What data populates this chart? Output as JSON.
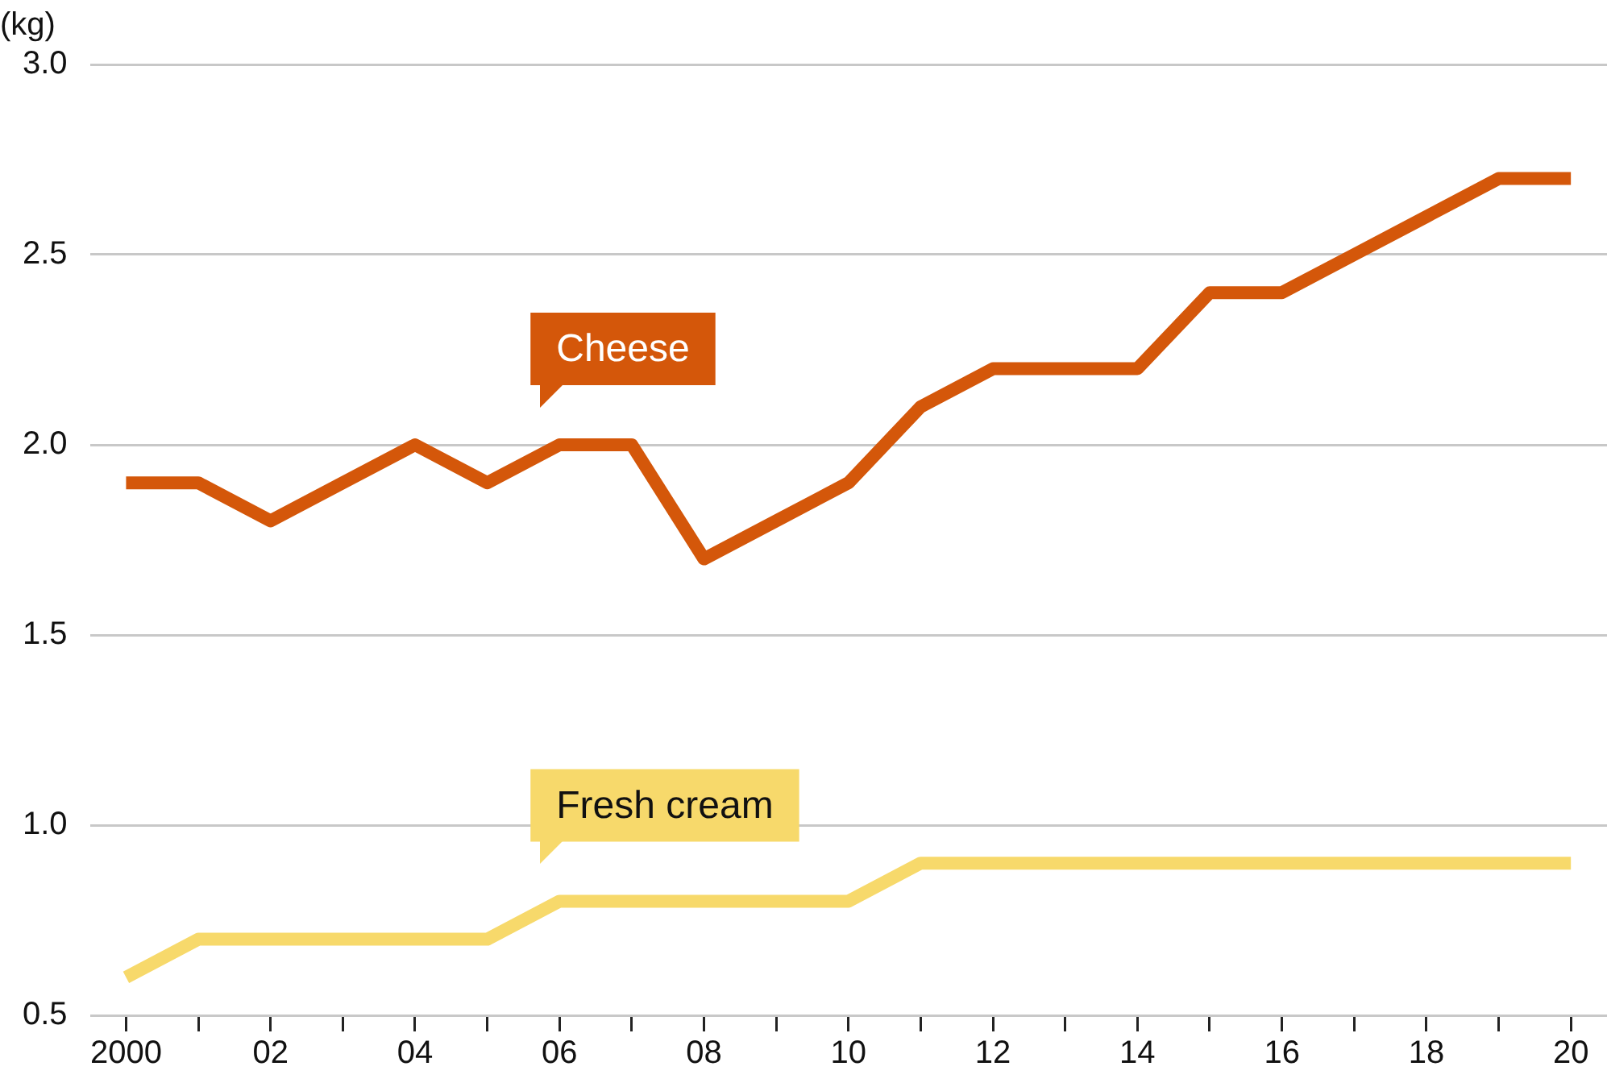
{
  "chart_data": {
    "type": "line",
    "ylabel": "(kg)",
    "x": [
      2000,
      2001,
      2002,
      2003,
      2004,
      2005,
      2006,
      2007,
      2008,
      2009,
      2010,
      2011,
      2012,
      2013,
      2014,
      2015,
      2016,
      2017,
      2018,
      2019,
      2020
    ],
    "series": [
      {
        "name": "Cheese",
        "color": "#d4570a",
        "values": [
          1.9,
          1.9,
          1.8,
          1.9,
          2.0,
          1.9,
          2.0,
          2.0,
          1.7,
          1.8,
          1.9,
          2.1,
          2.2,
          2.2,
          2.2,
          2.4,
          2.4,
          2.5,
          2.6,
          2.7,
          2.7
        ]
      },
      {
        "name": "Fresh cream",
        "color": "#f7d96b",
        "values": [
          0.6,
          0.7,
          0.7,
          0.7,
          0.7,
          0.7,
          0.8,
          0.8,
          0.8,
          0.8,
          0.8,
          0.9,
          0.9,
          0.9,
          0.9,
          0.9,
          0.9,
          0.9,
          0.9,
          0.9,
          0.9
        ]
      }
    ],
    "xlim": [
      1999.5,
      2020.5
    ],
    "xticks": [
      {
        "value": 2000,
        "label": "2000"
      },
      {
        "value": 2001,
        "label": null
      },
      {
        "value": 2002,
        "label": "02"
      },
      {
        "value": 2003,
        "label": null
      },
      {
        "value": 2004,
        "label": "04"
      },
      {
        "value": 2005,
        "label": null
      },
      {
        "value": 2006,
        "label": "06"
      },
      {
        "value": 2007,
        "label": null
      },
      {
        "value": 2008,
        "label": "08"
      },
      {
        "value": 2009,
        "label": null
      },
      {
        "value": 2010,
        "label": "10"
      },
      {
        "value": 2011,
        "label": null
      },
      {
        "value": 2012,
        "label": "12"
      },
      {
        "value": 2013,
        "label": null
      },
      {
        "value": 2014,
        "label": "14"
      },
      {
        "value": 2015,
        "label": null
      },
      {
        "value": 2016,
        "label": "16"
      },
      {
        "value": 2017,
        "label": null
      },
      {
        "value": 2018,
        "label": "18"
      },
      {
        "value": 2019,
        "label": null
      },
      {
        "value": 2020,
        "label": "20"
      }
    ],
    "ylim": [
      0.5,
      3.0
    ],
    "yticks": [
      {
        "value": 0.5,
        "label": "0.5"
      },
      {
        "value": 1.0,
        "label": "1.0"
      },
      {
        "value": 1.5,
        "label": "1.5"
      },
      {
        "value": 2.0,
        "label": "2.0"
      },
      {
        "value": 2.5,
        "label": "2.5"
      },
      {
        "value": 3.0,
        "label": "3.0"
      }
    ],
    "grid": "y",
    "legend": false,
    "marker": "none",
    "line_style": "solid"
  }
}
